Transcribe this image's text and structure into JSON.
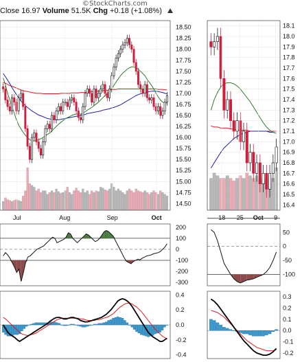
{
  "watermark": "©StockCharts.com",
  "header": {
    "close_label": "Close",
    "close_value": "16.97",
    "volume_label": "Volume",
    "volume_value": "51.5K",
    "chg_label": "Chg",
    "chg_value": "+0.18 (+1.08%)"
  },
  "colors": {
    "up": "#222222",
    "down": "#cc1f3c",
    "volume_up": "#b8b8b8",
    "volume_down": "#f0a8b4",
    "ma_red": "#d81e1e",
    "ma_blue": "#1e1ea8",
    "ma_green": "#2e7d2e",
    "cci_fill": "#4a7a3e",
    "cci_fill_neg": "#8c4a4a",
    "hist": "#3a9ad0"
  },
  "chart_data": [
    {
      "type": "candlestick",
      "name": "daily-price",
      "x_ticks": [
        "Jul",
        "Aug",
        "Sep",
        "Oct"
      ],
      "y_ticks": [
        "18.50",
        "18.25",
        "18.00",
        "17.75",
        "17.50",
        "17.25",
        "17.00",
        "16.75",
        "16.50",
        "16.25",
        "16.00",
        "15.75",
        "15.50",
        "15.25",
        "15.00",
        "14.75",
        "14.50"
      ],
      "ylim": [
        14.35,
        18.65
      ],
      "close": [
        17.1,
        16.85,
        16.7,
        16.6,
        16.9,
        16.8,
        16.6,
        16.9,
        17.0,
        16.7,
        16.2,
        15.8,
        15.5,
        16.0,
        16.1,
        15.9,
        15.75,
        15.6,
        15.9,
        16.2,
        16.3,
        16.2,
        16.5,
        16.4,
        16.6,
        16.7,
        16.6,
        16.8,
        16.8,
        16.7,
        16.85,
        16.9,
        16.8,
        16.6,
        16.45,
        16.4,
        16.7,
        17.0,
        17.1,
        17.0,
        16.8,
        17.1,
        16.9,
        17.0,
        17.1,
        17.2,
        17.0,
        16.9,
        17.1,
        17.4,
        17.6,
        17.8,
        17.9,
        18.0,
        18.1,
        18.15,
        18.25,
        18.1,
        18.0,
        17.7,
        17.5,
        17.2,
        17.1,
        17.0,
        17.2,
        16.9,
        16.85,
        16.9,
        16.7,
        16.6,
        16.7,
        16.5,
        16.6,
        16.8,
        16.95
      ],
      "volume": [
        10,
        14,
        12,
        11,
        10,
        11,
        12,
        11,
        10,
        16,
        22,
        48,
        30,
        28,
        26,
        22,
        24,
        20,
        22,
        22,
        18,
        20,
        22,
        20,
        24,
        21,
        19,
        20,
        22,
        26,
        20,
        18,
        22,
        25,
        22,
        20,
        24,
        20,
        22,
        18,
        22,
        20,
        22,
        21,
        26,
        25,
        23,
        22,
        24,
        30,
        26,
        22,
        24,
        22,
        20,
        18,
        22,
        24,
        22,
        20,
        24,
        22,
        21,
        20,
        22,
        20,
        18,
        20,
        22,
        20,
        18,
        22,
        20,
        18,
        16
      ],
      "ma_long": [
        17.25,
        17.23,
        17.2,
        17.18,
        17.16,
        17.14,
        17.12,
        17.1,
        17.08,
        17.06,
        17.05,
        17.04,
        17.03,
        17.02,
        17.01,
        17.0,
        17.0,
        17.0,
        16.99,
        16.99,
        16.99,
        16.99,
        16.99,
        16.99,
        16.99,
        16.99,
        17.0,
        17.0,
        17.0,
        17.0,
        17.0,
        17.01,
        17.01,
        17.01,
        17.01,
        17.02,
        17.02,
        17.02,
        17.03,
        17.03,
        17.04,
        17.04,
        17.05,
        17.05,
        17.06,
        17.06,
        17.07,
        17.07,
        17.08,
        17.08,
        17.09,
        17.09,
        17.1,
        17.1,
        17.1,
        17.1,
        17.1,
        17.1,
        17.1,
        17.1,
        17.1,
        17.1,
        17.1,
        17.1,
        17.1,
        17.1,
        17.1,
        17.1,
        17.1,
        17.1,
        17.09,
        17.09,
        17.09,
        17.08,
        17.08
      ],
      "ma_mid": [
        17.45,
        17.38,
        17.3,
        17.22,
        17.13,
        17.05,
        16.97,
        16.9,
        16.83,
        16.77,
        16.72,
        16.68,
        16.64,
        16.6,
        16.57,
        16.54,
        16.51,
        16.49,
        16.47,
        16.45,
        16.43,
        16.42,
        16.41,
        16.4,
        16.4,
        16.4,
        16.41,
        16.42,
        16.43,
        16.44,
        16.45,
        16.46,
        16.47,
        16.48,
        16.49,
        16.5,
        16.51,
        16.52,
        16.54,
        16.55,
        16.56,
        16.57,
        16.58,
        16.59,
        16.6,
        16.62,
        16.63,
        16.64,
        16.65,
        16.67,
        16.68,
        16.7,
        16.72,
        16.74,
        16.77,
        16.8,
        16.83,
        16.86,
        16.89,
        16.92,
        16.95,
        16.97,
        16.99,
        17.0,
        17.02,
        17.03,
        17.04,
        17.05,
        17.05,
        17.05,
        17.04,
        17.03,
        17.02,
        17.0,
        16.99
      ],
      "ma_short": [
        17.35,
        17.2,
        17.0,
        16.85,
        16.7,
        16.55,
        16.4,
        16.28,
        16.2,
        16.12,
        16.05,
        16.0,
        15.95,
        15.92,
        15.92,
        15.93,
        15.95,
        15.97,
        16.0,
        16.03,
        16.07,
        16.1,
        16.15,
        16.2,
        16.25,
        16.3,
        16.34,
        16.38,
        16.42,
        16.45,
        16.47,
        16.5,
        16.52,
        16.53,
        16.53,
        16.53,
        16.55,
        16.58,
        16.62,
        16.65,
        16.68,
        16.72,
        16.76,
        16.8,
        16.85,
        16.9,
        16.95,
        17.0,
        17.05,
        17.1,
        17.18,
        17.26,
        17.33,
        17.4,
        17.46,
        17.5,
        17.55,
        17.58,
        17.6,
        17.6,
        17.58,
        17.55,
        17.5,
        17.45,
        17.4,
        17.32,
        17.25,
        17.18,
        17.1,
        17.0,
        16.92,
        16.85,
        16.8,
        16.78,
        16.78
      ]
    },
    {
      "type": "line",
      "name": "daily-cci",
      "y_ticks": [
        "200",
        "100",
        "0",
        "-100",
        "-200",
        "-300"
      ],
      "ylim": [
        -330,
        230
      ],
      "values": [
        -60,
        -30,
        -50,
        -80,
        -120,
        -160,
        -210,
        -180,
        -290,
        -210,
        -120,
        -70,
        -60,
        -40,
        -20,
        0,
        10,
        20,
        30,
        50,
        70,
        90,
        110,
        100,
        60,
        70,
        80,
        90,
        110,
        150,
        140,
        100,
        80,
        60,
        80,
        100,
        120,
        140,
        130,
        110,
        90,
        70,
        80,
        100,
        130,
        160,
        170,
        160,
        140,
        120,
        80,
        40,
        0,
        -40,
        -80,
        -110,
        -120,
        -130,
        -110,
        -100,
        -90,
        -95,
        -80,
        -70,
        -60,
        -55,
        -50,
        -40,
        -35,
        -30,
        -20,
        0,
        20,
        50
      ]
    },
    {
      "type": "line",
      "name": "daily-macd",
      "y_ticks": [
        "0.4",
        "0.2",
        "0.0",
        "-0.2",
        "-0.4"
      ],
      "ylim": [
        -0.45,
        0.45
      ],
      "macd": [
        0.0,
        -0.05,
        -0.1,
        -0.13,
        -0.15,
        -0.17,
        -0.2,
        -0.22,
        -0.2,
        -0.18,
        -0.16,
        -0.14,
        -0.12,
        -0.1,
        -0.08,
        -0.06,
        -0.04,
        -0.02,
        0.0,
        0.02,
        0.05,
        0.07,
        0.09,
        0.1,
        0.1,
        0.09,
        0.08,
        0.08,
        0.09,
        0.1,
        0.1,
        0.09,
        0.08,
        0.06,
        0.05,
        0.04,
        0.04,
        0.05,
        0.06,
        0.07,
        0.08,
        0.09,
        0.1,
        0.12,
        0.14,
        0.17,
        0.2,
        0.24,
        0.28,
        0.32,
        0.34,
        0.35,
        0.34,
        0.32,
        0.29,
        0.25,
        0.2,
        0.15,
        0.1,
        0.05,
        0.0,
        -0.05,
        -0.1,
        -0.13,
        -0.16,
        -0.18,
        -0.2,
        -0.22,
        -0.22,
        -0.2,
        -0.18
      ],
      "signal": [
        0.1,
        0.08,
        0.05,
        0.02,
        -0.01,
        -0.04,
        -0.07,
        -0.1,
        -0.12,
        -0.13,
        -0.14,
        -0.14,
        -0.13,
        -0.12,
        -0.11,
        -0.09,
        -0.07,
        -0.05,
        -0.03,
        -0.01,
        0.01,
        0.03,
        0.05,
        0.07,
        0.08,
        0.09,
        0.09,
        0.09,
        0.09,
        0.09,
        0.09,
        0.09,
        0.09,
        0.08,
        0.08,
        0.07,
        0.06,
        0.06,
        0.06,
        0.06,
        0.07,
        0.07,
        0.08,
        0.09,
        0.1,
        0.11,
        0.13,
        0.15,
        0.18,
        0.21,
        0.24,
        0.26,
        0.28,
        0.29,
        0.29,
        0.28,
        0.26,
        0.24,
        0.21,
        0.18,
        0.14,
        0.1,
        0.06,
        0.02,
        -0.02,
        -0.06,
        -0.09,
        -0.12,
        -0.15,
        -0.17,
        -0.18
      ]
    },
    {
      "type": "candlestick",
      "name": "weekly-price",
      "x_ticks": [
        "18",
        "25",
        "Oct",
        "9"
      ],
      "y_ticks": [
        "18.1",
        "18.0",
        "17.9",
        "17.8",
        "17.7",
        "17.6",
        "17.5",
        "17.4",
        "17.3",
        "17.2",
        "17.1",
        "17.0",
        "16.9",
        "16.8",
        "16.7",
        "16.6",
        "16.5",
        "16.4"
      ],
      "ylim": [
        16.35,
        18.15
      ],
      "close": [
        17.9,
        17.95,
        18.0,
        17.6,
        17.3,
        17.4,
        17.2,
        17.1,
        17.2,
        17.0,
        17.1,
        16.8,
        16.9,
        16.7,
        16.8,
        16.6,
        16.7,
        16.55,
        16.7,
        16.8,
        16.95
      ],
      "volume": [
        12,
        14,
        13,
        12,
        12,
        13,
        12,
        11,
        12,
        13,
        12,
        14,
        13,
        12,
        13,
        12,
        11,
        12,
        13,
        12,
        16
      ],
      "ma_long": [
        17.15,
        17.14,
        17.14,
        17.13,
        17.13,
        17.13,
        17.12,
        17.12,
        17.11,
        17.11,
        17.11,
        17.11,
        17.1,
        17.1,
        17.1,
        17.1,
        17.1,
        17.1,
        17.1,
        17.1,
        17.1
      ],
      "ma_mid": [
        16.75,
        16.8,
        16.85,
        16.9,
        16.94,
        16.97,
        17.0,
        17.03,
        17.05,
        17.07,
        17.08,
        17.09,
        17.1,
        17.1,
        17.1,
        17.1,
        17.1,
        17.1,
        17.09,
        17.09,
        17.08
      ],
      "ma_short": [
        17.3,
        17.4,
        17.47,
        17.52,
        17.55,
        17.56,
        17.56,
        17.55,
        17.53,
        17.5,
        17.46,
        17.42,
        17.38,
        17.33,
        17.28,
        17.23,
        17.18,
        17.14,
        17.11,
        17.09,
        17.08
      ]
    },
    {
      "type": "line",
      "name": "weekly-cci",
      "y_ticks": [
        "50",
        "0",
        "-50",
        "-100"
      ],
      "ylim": [
        -140,
        80
      ],
      "values": [
        60,
        50,
        20,
        -20,
        -60,
        -80,
        -100,
        -115,
        -125,
        -130,
        -125,
        -120,
        -118,
        -115,
        -110,
        -105,
        -100,
        -90,
        -75,
        -50,
        -20
      ]
    },
    {
      "type": "line",
      "name": "weekly-macd",
      "y_ticks": [
        "0.3",
        "0.2",
        "0.1",
        "0.0",
        "-0.1",
        "-0.2"
      ],
      "ylim": [
        -0.25,
        0.35
      ],
      "macd": [
        0.28,
        0.26,
        0.23,
        0.19,
        0.15,
        0.11,
        0.07,
        0.03,
        -0.01,
        -0.05,
        -0.09,
        -0.12,
        -0.15,
        -0.18,
        -0.2,
        -0.21,
        -0.22,
        -0.22,
        -0.21,
        -0.19,
        -0.16
      ],
      "signal": [
        0.18,
        0.17,
        0.16,
        0.14,
        0.12,
        0.09,
        0.06,
        0.03,
        0.0,
        -0.03,
        -0.06,
        -0.09,
        -0.11,
        -0.13,
        -0.15,
        -0.16,
        -0.17,
        -0.18,
        -0.18,
        -0.18,
        -0.17
      ]
    }
  ]
}
